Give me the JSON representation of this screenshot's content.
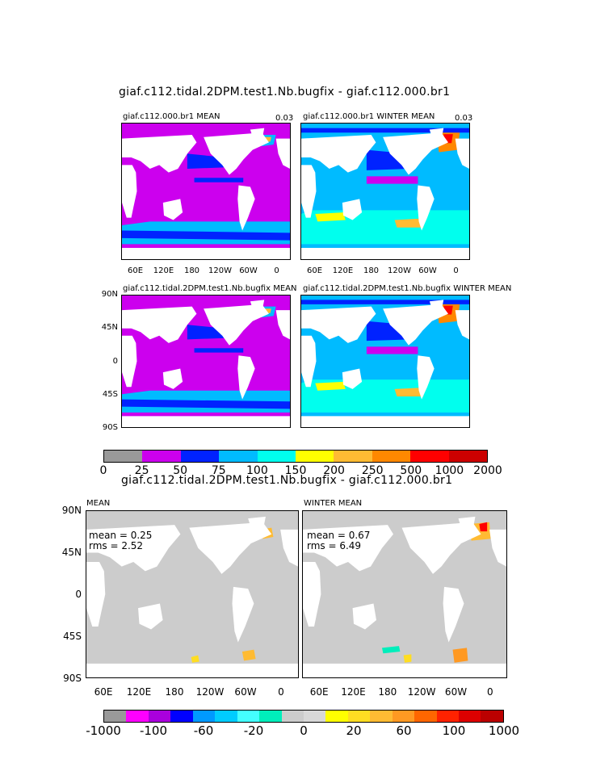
{
  "titles": {
    "top": "giaf.c112.tidal.2DPM.test1.Nb.bugfix - giaf.c112.000.br1",
    "bottom": "giaf.c112.tidal.2DPM.test1.Nb.bugfix - giaf.c112.000.br1"
  },
  "panels": {
    "p1": {
      "title": "giaf.c112.000.br1 MEAN",
      "scale": "0.03"
    },
    "p2": {
      "title": "giaf.c112.000.br1 WINTER MEAN",
      "scale": "0.03"
    },
    "p3": {
      "title": "giaf.c112.tidal.2DPM.test1.Nb.bugfix MEAN"
    },
    "p4": {
      "title": "giaf.c112.tidal.2DPM.test1.Nb.bugfix WINTER MEAN"
    },
    "p5": {
      "title": "MEAN",
      "mean": "mean = 0.25",
      "rms": "rms = 2.52"
    },
    "p6": {
      "title": "WINTER MEAN",
      "mean": "mean = 0.67",
      "rms": "rms = 6.49"
    }
  },
  "axes": {
    "lon_ticks": [
      "60E",
      "120E",
      "180",
      "120W",
      "60W",
      "0"
    ],
    "lat_ticks": [
      "90N",
      "45N",
      "0",
      "45S",
      "90S"
    ]
  },
  "colorbar_top": {
    "labels": [
      "0",
      "25",
      "50",
      "75",
      "100",
      "150",
      "200",
      "250",
      "500",
      "1000",
      "2000"
    ],
    "colors": [
      "#999999",
      "#cc00ee",
      "#0022ff",
      "#00bbff",
      "#00ffee",
      "#ffff00",
      "#ffbb33",
      "#ff8800",
      "#ff0000",
      "#cc0000"
    ]
  },
  "colorbar_bottom": {
    "labels": [
      "-1000",
      "-100",
      "-60",
      "-20",
      "0",
      "20",
      "60",
      "100",
      "1000"
    ],
    "colors": [
      "#999999",
      "#ff00ff",
      "#aa00dd",
      "#0000ff",
      "#0099ff",
      "#00ccff",
      "#44ffff",
      "#00eebb",
      "#cccccc",
      "#d8d8d8",
      "#ffff00",
      "#ffdd22",
      "#ffbb33",
      "#ff9922",
      "#ff6600",
      "#ff2200",
      "#dd0000",
      "#bb0000"
    ]
  },
  "fields": {
    "top_mean_fill": "#cc00ee",
    "top_winter_fill": "#00bbff",
    "diff_fill": "#cccccc",
    "land": "#ffffff"
  }
}
